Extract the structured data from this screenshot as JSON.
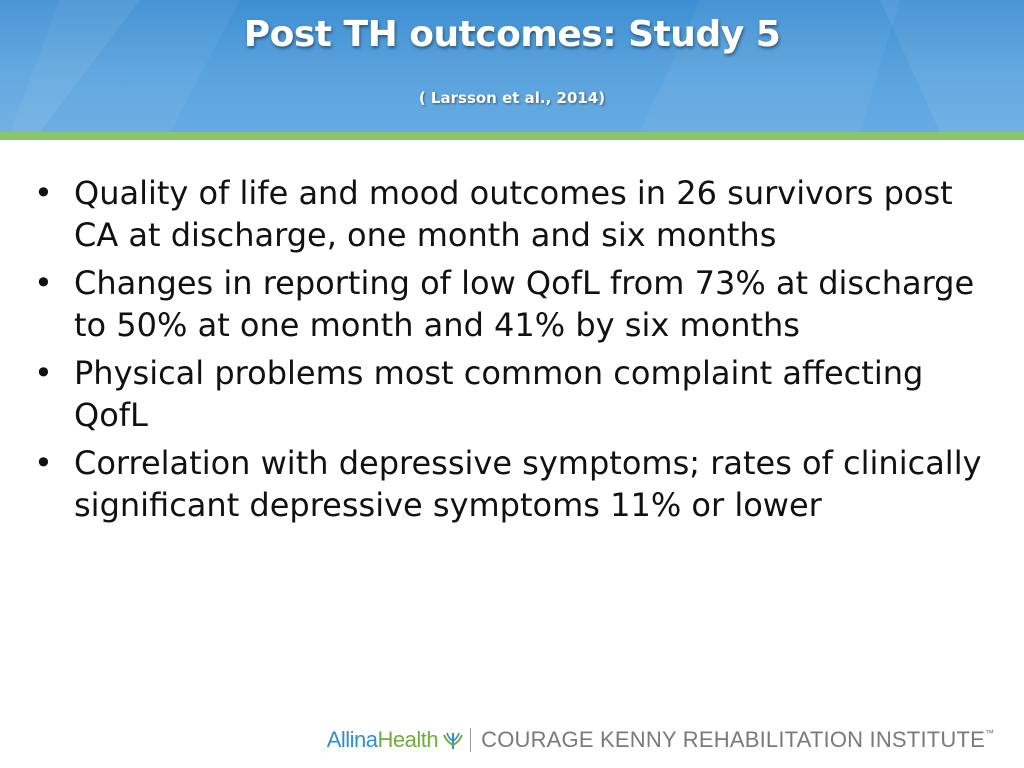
{
  "slide": {
    "title": "Post TH outcomes: Study 5",
    "subtitle": "( Larsson et al., 2014)",
    "bullets": [
      "Quality of life and mood outcomes in 26 survivors post CA at discharge, one month and six months",
      "Changes in reporting of low QofL from 73% at discharge to 50% at one month and 41% by six months",
      "Physical problems most common complaint affecting QofL",
      "Correlation with depressive symptoms; rates of clinically significant depressive symptoms 11% or lower"
    ]
  },
  "footer": {
    "logo_allina": "Allina",
    "logo_health": "Health",
    "logo_institute": "COURAGE KENNY REHABILITATION INSTITUTE",
    "logo_tm": "™"
  },
  "colors": {
    "header_blue": "#4a99d8",
    "accent_green": "#8cc46c",
    "allina_blue": "#2f8fd1",
    "health_green": "#6fae3d"
  }
}
